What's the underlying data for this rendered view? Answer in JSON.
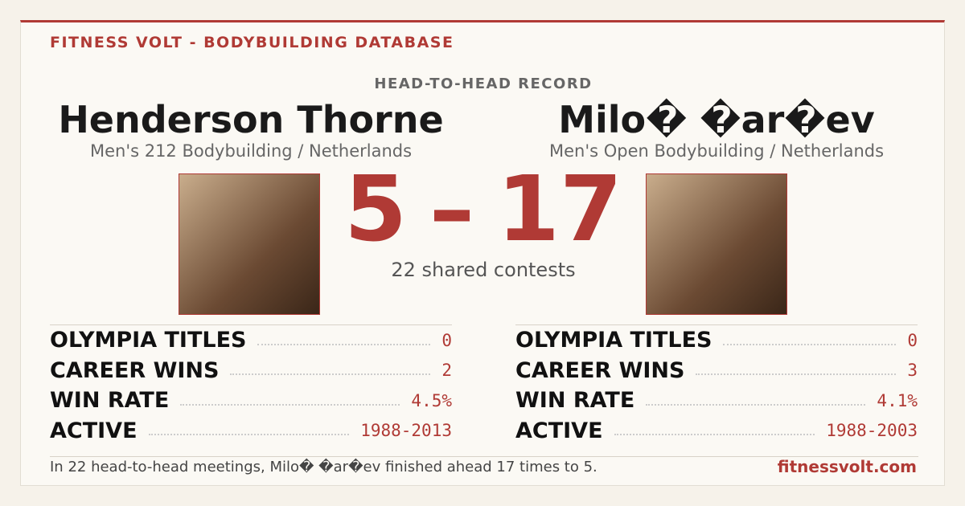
{
  "header": {
    "brand": "FITNESS VOLT - BODYBUILDING DATABASE",
    "section": "HEAD-TO-HEAD RECORD"
  },
  "athletes": [
    {
      "name": "Henderson Thorne",
      "division": "Men's 212 Bodybuilding / Netherlands",
      "stats": [
        {
          "label": "OLYMPIA TITLES",
          "value": "0"
        },
        {
          "label": "CAREER WINS",
          "value": "2"
        },
        {
          "label": "WIN RATE",
          "value": "4.5%"
        },
        {
          "label": "ACTIVE",
          "value": "1988-2013"
        }
      ]
    },
    {
      "name": "Milo� �ar�ev",
      "division": "Men's Open Bodybuilding / Netherlands",
      "stats": [
        {
          "label": "OLYMPIA TITLES",
          "value": "0"
        },
        {
          "label": "CAREER WINS",
          "value": "3"
        },
        {
          "label": "WIN RATE",
          "value": "4.1%"
        },
        {
          "label": "ACTIVE",
          "value": "1988-2003"
        }
      ]
    }
  ],
  "score": {
    "left": 5,
    "separator": "–",
    "right": 17,
    "caption": "22 shared contests"
  },
  "footer": {
    "summary": "In 22 head-to-head meetings, Milo� �ar�ev finished ahead 17 times to 5.",
    "site": "fitnessvolt.com"
  }
}
